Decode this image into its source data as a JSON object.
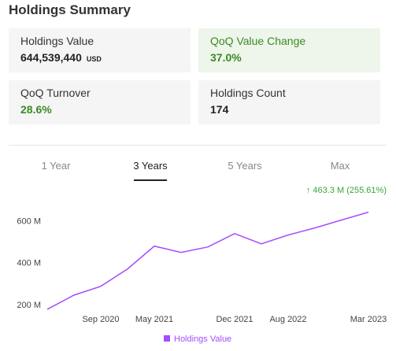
{
  "header": {
    "title": "Holdings Summary"
  },
  "cards": [
    {
      "label": "Holdings Value",
      "value": "644,539,440",
      "unit": "USD"
    },
    {
      "label": "QoQ Value Change",
      "value": "37.0%"
    },
    {
      "label": "QoQ Turnover",
      "value": "28.6%"
    },
    {
      "label": "Holdings Count",
      "value": "174"
    }
  ],
  "tabs": [
    "1 Year",
    "3 Years",
    "5 Years",
    "Max"
  ],
  "active_tab": 1,
  "chart_data": {
    "type": "line",
    "annotation": "↑ 463.3 M (255.61%)",
    "categories": [
      null,
      null,
      "Sep 2020",
      null,
      "May 2021",
      null,
      null,
      "Dec 2021",
      null,
      "Aug 2022",
      null,
      null,
      "Mar 2023"
    ],
    "series": [
      {
        "name": "Holdings Value",
        "color": "#a64dff",
        "values": [
          181,
          249,
          291,
          374,
          483,
          453,
          479,
          543,
          494,
          536,
          570,
          608,
          645
        ]
      }
    ],
    "ylim": [
      170,
      670
    ],
    "yticks": [
      {
        "value": 200,
        "label": "200 M"
      },
      {
        "value": 400,
        "label": "400 M"
      },
      {
        "value": 600,
        "label": "600 M"
      }
    ]
  }
}
